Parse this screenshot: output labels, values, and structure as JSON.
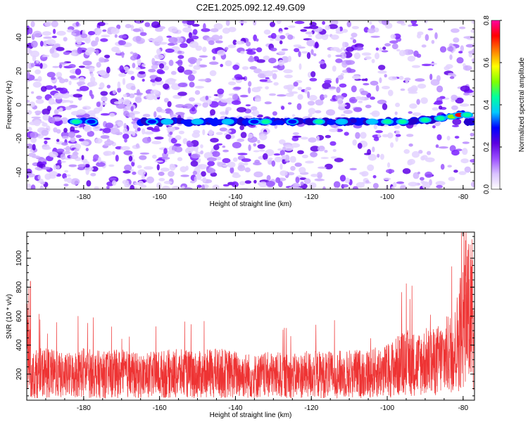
{
  "title": "C2E1.2025.092.12.49.G09",
  "chart_data": [
    {
      "type": "heatmap",
      "xlabel": "Height of straight line (km)",
      "ylabel": "Frequency (Hz)",
      "xlim": [
        -195,
        -77
      ],
      "ylim": [
        -50,
        50
      ],
      "x_ticks": [
        -180,
        -160,
        -140,
        -120,
        -100,
        -80
      ],
      "y_ticks": [
        -40,
        -20,
        0,
        20,
        40
      ],
      "colorbar": {
        "label": "Normalized spectral amplitude",
        "range": [
          0,
          0.8
        ],
        "ticks": [
          0.0,
          0.2,
          0.4,
          0.6,
          0.8
        ],
        "colors": [
          "#ffffff",
          "#d9c2ff",
          "#9b4dff",
          "#5b00e0",
          "#0000ff",
          "#00c8ff",
          "#00ffa0",
          "#80ff00",
          "#ffff00",
          "#ff8000",
          "#ff0000",
          "#ff00a0"
        ]
      },
      "signal_track": [
        {
          "x": -182,
          "f": -10,
          "amp": 0.4
        },
        {
          "x": -178,
          "f": -10,
          "amp": 0.3
        },
        {
          "x": -162,
          "f": -10,
          "amp": 0.3
        },
        {
          "x": -158,
          "f": -10,
          "amp": 0.35
        },
        {
          "x": -150,
          "f": -10,
          "amp": 0.35
        },
        {
          "x": -142,
          "f": -10,
          "amp": 0.35
        },
        {
          "x": -135,
          "f": -10,
          "amp": 0.3
        },
        {
          "x": -132,
          "f": -10,
          "amp": 0.45
        },
        {
          "x": -125,
          "f": -10,
          "amp": 0.3
        },
        {
          "x": -118,
          "f": -10,
          "amp": 0.4
        },
        {
          "x": -112,
          "f": -10,
          "amp": 0.35
        },
        {
          "x": -104,
          "f": -10,
          "amp": 0.35
        },
        {
          "x": -100,
          "f": -10,
          "amp": 0.45
        },
        {
          "x": -96,
          "f": -10,
          "amp": 0.4
        },
        {
          "x": -90,
          "f": -9,
          "amp": 0.4
        },
        {
          "x": -86,
          "f": -8,
          "amp": 0.45
        },
        {
          "x": -83,
          "f": -7,
          "amp": 0.5
        },
        {
          "x": -81,
          "f": -6,
          "amp": 0.75
        },
        {
          "x": -79,
          "f": -6,
          "amp": 0.45
        }
      ]
    },
    {
      "type": "line",
      "xlabel": "Height of straight line (km)",
      "ylabel": "SNR (10 * v/v)",
      "xlim": [
        -195,
        -77
      ],
      "ylim": [
        20,
        1180
      ],
      "x_ticks": [
        -180,
        -160,
        -140,
        -120,
        -100,
        -80
      ],
      "y_ticks": [
        200,
        400,
        600,
        800,
        1000
      ],
      "color": "#ee3333",
      "series": [
        {
          "values": [
            [
              -194,
              210
            ],
            [
              -190,
              230
            ],
            [
              -185,
              200
            ],
            [
              -180,
              230
            ],
            [
              -175,
              210
            ],
            [
              -170,
              220
            ],
            [
              -165,
              200
            ],
            [
              -160,
              215
            ],
            [
              -155,
              220
            ],
            [
              -150,
              210
            ],
            [
              -145,
              225
            ],
            [
              -140,
              215
            ],
            [
              -135,
              200
            ],
            [
              -130,
              210
            ],
            [
              -125,
              200
            ],
            [
              -120,
              215
            ],
            [
              -115,
              210
            ],
            [
              -110,
              220
            ],
            [
              -105,
              220
            ],
            [
              -100,
              240
            ],
            [
              -97,
              280
            ],
            [
              -95,
              300
            ],
            [
              -92,
              290
            ],
            [
              -90,
              310
            ],
            [
              -88,
              300
            ],
            [
              -86,
              330
            ],
            [
              -84,
              360
            ],
            [
              -82,
              400
            ],
            [
              -81,
              520
            ],
            [
              -80,
              600
            ],
            [
              -79,
              700
            ],
            [
              -78,
              650
            ],
            [
              -77,
              500
            ]
          ]
        }
      ]
    }
  ]
}
